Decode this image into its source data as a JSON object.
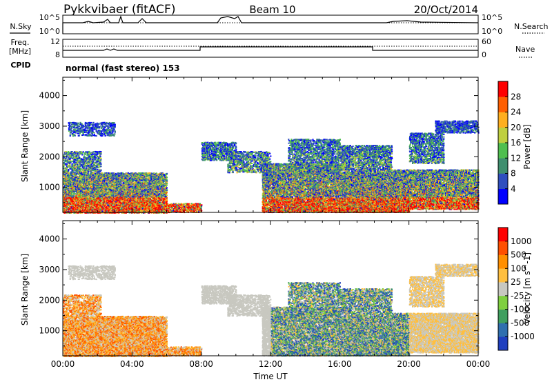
{
  "header": {
    "title": "Pykkvibaer (fitACF)",
    "beam": "Beam 10",
    "date": "20/Oct/2014"
  },
  "top_panels": {
    "nsky_label": "N.Sky",
    "nsky_ticks": [
      "10^5",
      "10^0"
    ],
    "nsearch_label": "N.Search",
    "freq_label": "Freq.",
    "freq_unit": "[MHz]",
    "freq_ticks": [
      "12",
      "8"
    ],
    "nave_label": "Nave",
    "nave_ticks": [
      "60",
      "0"
    ],
    "cpid_label": "CPID",
    "cpid_text": "normal (fast stereo) 153"
  },
  "chart_data": [
    {
      "type": "heatmap",
      "title": "",
      "ylabel": "Slant Range [km]",
      "xlabel": "",
      "ylim": [
        180,
        4600
      ],
      "yticks": [
        "1000",
        "2000",
        "3000",
        "4000"
      ],
      "xticks": [
        "00:00",
        "04:00",
        "08:00",
        "12:00",
        "16:00",
        "20:00",
        "00:00"
      ],
      "colorbar": {
        "label": "Power [dB]",
        "ticks": [
          "4",
          "8",
          "12",
          "16",
          "20",
          "24",
          "28"
        ],
        "colors": [
          "#0000ff",
          "#2f4fbf",
          "#3f8f6f",
          "#4fbf4f",
          "#bfcf3f",
          "#ffaf1f",
          "#ff5f00",
          "#ff0000"
        ]
      }
    },
    {
      "type": "heatmap",
      "title": "",
      "ylabel": "Slant Range [km]",
      "xlabel": "Time UT",
      "ylim": [
        180,
        4600
      ],
      "yticks": [
        "1000",
        "2000",
        "3000",
        "4000"
      ],
      "xticks": [
        "00:00",
        "04:00",
        "08:00",
        "12:00",
        "16:00",
        "20:00",
        "00:00"
      ],
      "colorbar": {
        "label": "Velocity [m s^-1]",
        "ticks": [
          "1000",
          "500",
          "100",
          "25",
          "-25",
          "-100",
          "-500",
          "-1000"
        ],
        "colors": [
          "#1f3fbf",
          "#2f6faf",
          "#3f9f5f",
          "#7fcf3f",
          "#c8c8c0",
          "#ffbf3f",
          "#ff8f00",
          "#ff4f00",
          "#ff0000"
        ]
      }
    }
  ]
}
